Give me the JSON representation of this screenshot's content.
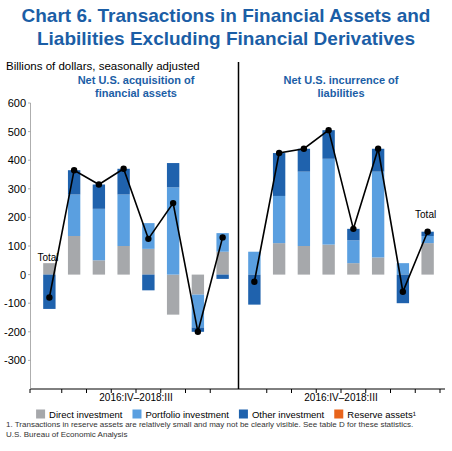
{
  "chart_data": [
    {
      "type": "bar",
      "title": "Chart 6. Transactions in Financial Assets and Liabilities Excluding Financial Derivatives",
      "subtitle": "Net U.S. acquisition of financial assets",
      "ylabel": "Billions of dollars, seasonally adjusted",
      "xlabel": "2016:IV–2018:III",
      "annotations": [
        "1. Transactions in reserve assets are relatively small and may not be clearly visible. See table D for these statistics.",
        "U.S. Bureau of Economic Analysis"
      ],
      "categories": [
        null,
        null,
        null,
        null,
        null,
        null,
        null,
        null
      ],
      "series": [
        {
          "name": "Direct investment",
          "color": "#a6a8ab",
          "values": [
            40,
            135,
            50,
            100,
            90,
            -140,
            -70,
            80
          ]
        },
        {
          "name": "Portfolio investment",
          "color": "#5a9fe0",
          "values": [
            0,
            145,
            180,
            180,
            90,
            305,
            -115,
            65
          ]
        },
        {
          "name": "Other investment",
          "color": "#1f62ad",
          "values": [
            -120,
            85,
            85,
            90,
            -55,
            85,
            -15,
            -15
          ]
        },
        {
          "name": "Reserve assets¹",
          "color": "#e8641b",
          "values": [
            0,
            0,
            0,
            0,
            0,
            0,
            0,
            0
          ]
        },
        {
          "name": "Total",
          "type": "line",
          "marker": "circle",
          "color": "#000000",
          "values": [
            -80,
            365,
            315,
            370,
            125,
            250,
            -200,
            130
          ]
        }
      ],
      "stacked": true,
      "ylim": [
        -400,
        600
      ],
      "yticks": [
        -300,
        -200,
        -100,
        0,
        100,
        200,
        300,
        400,
        500,
        600
      ],
      "tick_labels": "y",
      "grid": false,
      "legend": "bottom"
    },
    {
      "type": "bar",
      "subtitle": "Net U.S. incurrence of liabilities",
      "xlabel": "2016:IV–2018:III",
      "categories": [
        null,
        null,
        null,
        null,
        null,
        null,
        null,
        null
      ],
      "series": [
        {
          "color": "#a6a8ab",
          "values": [
            0,
            110,
            100,
            105,
            40,
            60,
            0,
            110
          ]
        },
        {
          "color": "#5a9fe0",
          "values": [
            80,
            165,
            260,
            300,
            80,
            300,
            40,
            25
          ]
        },
        {
          "color": "#1f62ad",
          "values": [
            -105,
            150,
            80,
            100,
            40,
            80,
            -100,
            15
          ]
        },
        {
          "name": "Total",
          "type": "line",
          "marker": "circle",
          "color": "#000000",
          "values": [
            -25,
            425,
            440,
            505,
            160,
            440,
            -60,
            150
          ]
        }
      ],
      "stacked": true,
      "ylim": [
        -400,
        600
      ],
      "grid": false
    }
  ]
}
